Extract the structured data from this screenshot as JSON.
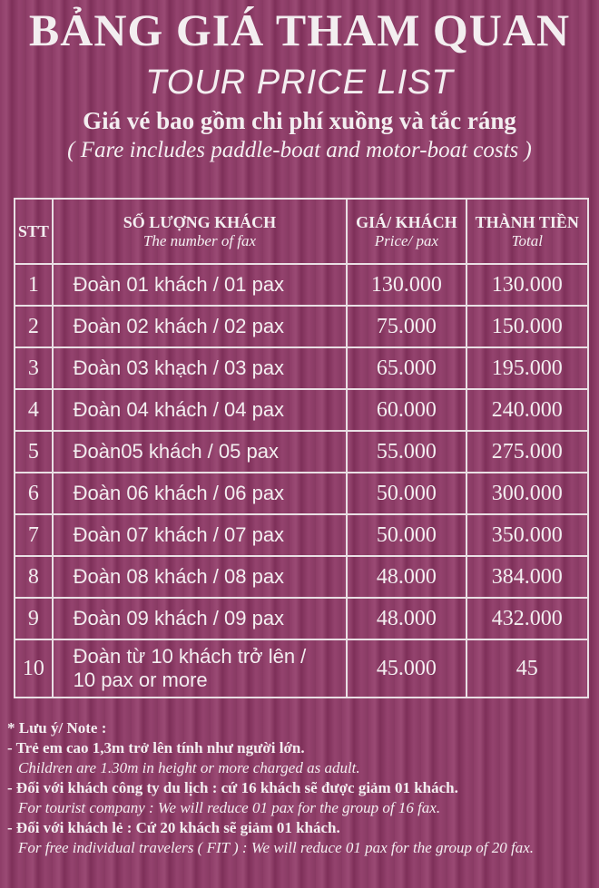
{
  "header": {
    "title": "BẢNG GIÁ THAM QUAN",
    "subtitle": "TOUR PRICE LIST",
    "note_vi": "Giá vé bao gồm chi phí xuồng và tắc ráng",
    "note_en": "( Fare includes paddle-boat and motor-boat costs )"
  },
  "table": {
    "headers": [
      [
        "STT"
      ],
      [
        "SỐ LƯỢNG KHÁCH",
        "The number of fax"
      ],
      [
        "GIÁ/ KHÁCH",
        "Price/ pax"
      ],
      [
        "THÀNH TIỀN",
        "Total"
      ]
    ],
    "rows": [
      [
        "1",
        "Đoàn 01 khách / 01 pax",
        "130.000",
        "130.000"
      ],
      [
        "2",
        "Đoàn 02 khách / 02 pax",
        "75.000",
        "150.000"
      ],
      [
        "3",
        "Đoàn 03 khạch / 03 pax",
        "65.000",
        "195.000"
      ],
      [
        "4",
        "Đoàn 04 khách / 04 pax",
        "60.000",
        "240.000"
      ],
      [
        "5",
        "Đoàn05 khách / 05 pax",
        "55.000",
        "275.000"
      ],
      [
        "6",
        "Đoàn 06 khách / 06 pax",
        "50.000",
        "300.000"
      ],
      [
        "7",
        "Đoàn 07 khách / 07 pax",
        "50.000",
        "350.000"
      ],
      [
        "8",
        "Đoàn 08 khách / 08 pax",
        "48.000",
        "384.000"
      ],
      [
        "9",
        "Đoàn 09 khách / 09 pax",
        "48.000",
        "432.000"
      ],
      [
        "10",
        [
          "Đoàn từ 10 khách trở lên /",
          "10 pax or more"
        ],
        "45.000",
        "45"
      ]
    ]
  },
  "notes": {
    "heading": "* Lưu ý/ Note :",
    "items": [
      {
        "vi": "- Trẻ em cao 1,3m trở lên tính như người lớn.",
        "en": "Children are 1.30m in height or more charged as adult."
      },
      {
        "vi": "- Đối với khách công ty du lịch : cứ 16 khách sẽ được giảm 01 khách.",
        "en": "For tourist company : We will reduce 01 pax for the group of 16 fax."
      },
      {
        "vi": "- Đối với khách lẻ : Cứ 20 khách sẽ giảm 01 khách.",
        "en": "For free individual travelers ( FIT ) : We will reduce 01 pax for the group of 20 fax."
      }
    ]
  }
}
